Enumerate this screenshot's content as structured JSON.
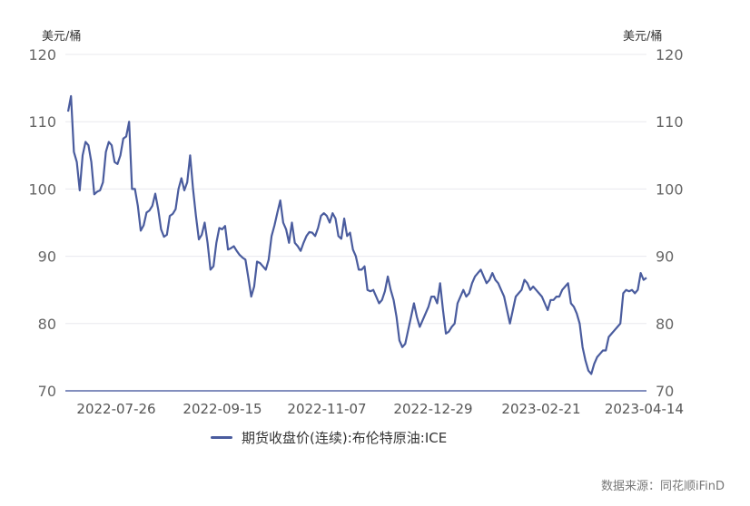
{
  "chart_data": {
    "type": "line",
    "left_unit": "美元/桶",
    "right_unit": "美元/桶",
    "ylim": [
      70,
      120
    ],
    "y_ticks": [
      "70",
      "80",
      "90",
      "100",
      "110",
      "120"
    ],
    "x_tick_labels": [
      "2022-07-26",
      "2022-09-15",
      "2022-11-07",
      "2022-12-29",
      "2023-02-21",
      "2023-04-14"
    ],
    "grid": "horizontal",
    "legend_position": "bottom",
    "line_color": "#4a5c9e",
    "series": [
      {
        "name": "期货收盘价(连续):布伦特原油:ICE",
        "values": [
          111.5,
          113.8,
          105.5,
          104.0,
          99.8,
          105.0,
          107.0,
          106.5,
          104.0,
          99.2,
          99.6,
          99.8,
          101.0,
          105.5,
          107.0,
          106.5,
          104.0,
          103.7,
          105.0,
          107.5,
          107.8,
          110.0,
          100.0,
          100.0,
          97.5,
          93.8,
          94.6,
          96.5,
          96.8,
          97.5,
          99.3,
          97.0,
          94.0,
          92.9,
          93.2,
          96.0,
          96.3,
          97.0,
          100.0,
          101.6,
          99.8,
          101.0,
          105.0,
          100.0,
          96.0,
          92.5,
          93.2,
          95.0,
          92.0,
          88.0,
          88.5,
          92.0,
          94.2,
          94.0,
          94.5,
          91.0,
          91.2,
          91.5,
          90.8,
          90.2,
          89.8,
          89.5,
          86.8,
          84.0,
          85.5,
          89.2,
          89.0,
          88.5,
          88.0,
          89.5,
          93.0,
          94.6,
          96.5,
          98.3,
          95.0,
          94.0,
          92.0,
          95.0,
          92.0,
          91.5,
          90.8,
          92.0,
          93.0,
          93.6,
          93.5,
          93.0,
          94.2,
          96.0,
          96.4,
          96.0,
          95.0,
          96.4,
          95.6,
          93.0,
          92.6,
          95.6,
          93.0,
          93.5,
          91.0,
          90.0,
          88.0,
          88.0,
          88.5,
          85.0,
          84.8,
          85.0,
          84.0,
          83.0,
          83.5,
          84.8,
          87.0,
          85.0,
          83.5,
          81.0,
          77.5,
          76.5,
          77.0,
          79.0,
          81.0,
          83.0,
          81.0,
          79.5,
          80.5,
          81.5,
          82.5,
          84.0,
          84.0,
          83.0,
          86.0,
          82.0,
          78.5,
          78.8,
          79.5,
          80.0,
          83.0,
          84.0,
          85.0,
          84.0,
          84.5,
          86.0,
          87.0,
          87.5,
          88.0,
          87.0,
          86.0,
          86.5,
          87.5,
          86.5,
          86.0,
          85.0,
          84.0,
          82.0,
          80.0,
          82.0,
          84.0,
          84.5,
          85.0,
          86.5,
          86.0,
          85.0,
          85.5,
          85.0,
          84.5,
          84.0,
          83.0,
          82.0,
          83.5,
          83.5,
          84.0,
          84.0,
          85.0,
          85.5,
          86.0,
          83.0,
          82.5,
          81.5,
          80.0,
          76.5,
          74.5,
          73.0,
          72.5,
          74.0,
          75.0,
          75.5,
          76.0,
          76.0,
          78.0,
          78.5,
          79.0,
          79.5,
          80.0,
          84.5,
          85.0,
          84.8,
          85.0,
          84.5,
          85.0,
          87.5,
          86.5,
          86.8
        ]
      }
    ]
  },
  "source": "数据来源：同花顺iFinD"
}
